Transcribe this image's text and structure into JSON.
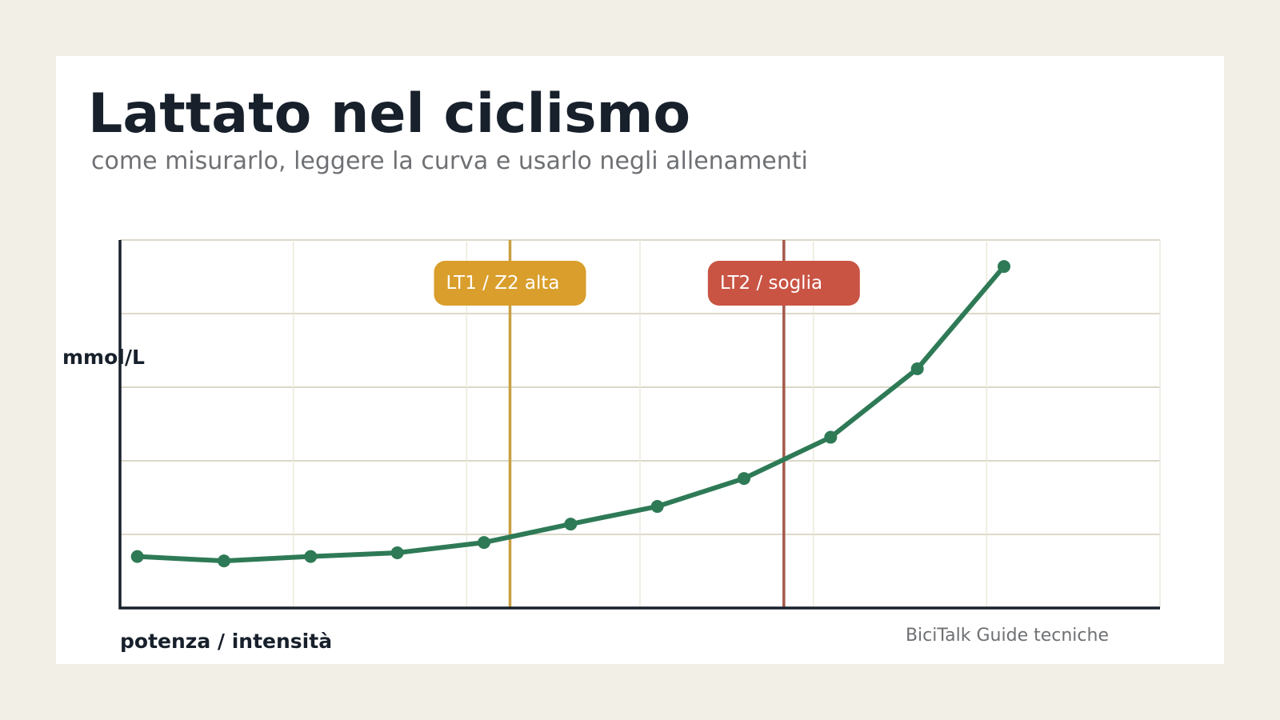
{
  "header": {
    "title": "Lattato nel ciclismo",
    "subtitle": "come misurarlo, leggere la curva e usarlo negli allenamenti"
  },
  "footer": {
    "source": "BiciTalk Guide tecniche"
  },
  "chart_data": {
    "type": "line",
    "xlabel": "potenza / intensità",
    "ylabel": "mmol/L",
    "grid": true,
    "series": [
      {
        "color": "#2e7a56",
        "values": [
          0.7,
          0.64,
          0.7,
          0.75,
          0.89,
          1.14,
          1.38,
          1.76,
          2.32,
          3.25,
          4.64
        ]
      }
    ],
    "ylim": [
      0,
      5
    ],
    "x_domain": [
      0,
      12
    ],
    "thresholds": [
      {
        "label": "LT1 / Z2 alta",
        "x": 4.5,
        "color": "#d99e2b",
        "line_color": "#c9a041"
      },
      {
        "label": "LT2 / soglia",
        "x": 7.66,
        "color": "#c95444",
        "line_color": "#a4584a"
      }
    ]
  }
}
